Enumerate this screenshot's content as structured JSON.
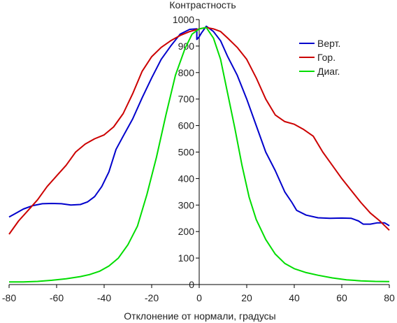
{
  "chart_data": {
    "type": "line",
    "title": "Контрастность",
    "xlabel": "Отклонение от нормали, градусы",
    "ylabel": "",
    "xlim": [
      -80,
      80
    ],
    "ylim": [
      0,
      1000
    ],
    "xticks": [
      -80,
      -60,
      -40,
      -20,
      0,
      20,
      40,
      60,
      80
    ],
    "yticks": [
      0,
      100,
      200,
      300,
      400,
      500,
      600,
      700,
      800,
      900,
      1000
    ],
    "grid": false,
    "legend_position": "top-right",
    "series": [
      {
        "name": "Верт.",
        "color": "#0000cc",
        "points": [
          [
            -80,
            255
          ],
          [
            -77,
            270
          ],
          [
            -74,
            285
          ],
          [
            -70,
            298
          ],
          [
            -66,
            305
          ],
          [
            -62,
            306
          ],
          [
            -58,
            305
          ],
          [
            -54,
            300
          ],
          [
            -50,
            302
          ],
          [
            -47,
            312
          ],
          [
            -44,
            332
          ],
          [
            -41,
            370
          ],
          [
            -38,
            425
          ],
          [
            -35,
            510
          ],
          [
            -32,
            560
          ],
          [
            -28,
            625
          ],
          [
            -24,
            705
          ],
          [
            -20,
            780
          ],
          [
            -16,
            850
          ],
          [
            -12,
            900
          ],
          [
            -8,
            945
          ],
          [
            -4,
            963
          ],
          [
            -1,
            965
          ],
          [
            -1,
            925
          ],
          [
            0,
            935
          ],
          [
            1,
            950
          ],
          [
            3,
            975
          ],
          [
            6,
            955
          ],
          [
            9,
            920
          ],
          [
            12,
            860
          ],
          [
            16,
            790
          ],
          [
            20,
            700
          ],
          [
            24,
            600
          ],
          [
            28,
            500
          ],
          [
            32,
            430
          ],
          [
            36,
            350
          ],
          [
            39,
            310
          ],
          [
            41,
            280
          ],
          [
            45,
            262
          ],
          [
            50,
            252
          ],
          [
            55,
            250
          ],
          [
            60,
            251
          ],
          [
            64,
            250
          ],
          [
            67,
            240
          ],
          [
            69,
            228
          ],
          [
            72,
            228
          ],
          [
            75,
            233
          ],
          [
            78,
            233
          ],
          [
            80,
            222
          ]
        ]
      },
      {
        "name": "Гор.",
        "color": "#cc0000",
        "points": [
          [
            -80,
            190
          ],
          [
            -76,
            240
          ],
          [
            -72,
            280
          ],
          [
            -68,
            320
          ],
          [
            -64,
            370
          ],
          [
            -60,
            410
          ],
          [
            -56,
            450
          ],
          [
            -52,
            500
          ],
          [
            -48,
            530
          ],
          [
            -44,
            550
          ],
          [
            -40,
            565
          ],
          [
            -36,
            595
          ],
          [
            -32,
            645
          ],
          [
            -28,
            720
          ],
          [
            -24,
            805
          ],
          [
            -20,
            860
          ],
          [
            -16,
            895
          ],
          [
            -12,
            920
          ],
          [
            -8,
            940
          ],
          [
            -4,
            955
          ],
          [
            0,
            965
          ],
          [
            3,
            970
          ],
          [
            6,
            965
          ],
          [
            9,
            955
          ],
          [
            12,
            930
          ],
          [
            16,
            895
          ],
          [
            20,
            850
          ],
          [
            24,
            780
          ],
          [
            28,
            700
          ],
          [
            32,
            640
          ],
          [
            36,
            615
          ],
          [
            40,
            605
          ],
          [
            44,
            585
          ],
          [
            48,
            560
          ],
          [
            52,
            500
          ],
          [
            56,
            450
          ],
          [
            60,
            400
          ],
          [
            64,
            355
          ],
          [
            68,
            310
          ],
          [
            72,
            270
          ],
          [
            76,
            240
          ],
          [
            80,
            205
          ]
        ]
      },
      {
        "name": "Диаг.",
        "color": "#00dd00",
        "points": [
          [
            -80,
            10
          ],
          [
            -74,
            10
          ],
          [
            -68,
            12
          ],
          [
            -62,
            16
          ],
          [
            -56,
            22
          ],
          [
            -50,
            30
          ],
          [
            -46,
            38
          ],
          [
            -42,
            50
          ],
          [
            -38,
            70
          ],
          [
            -34,
            100
          ],
          [
            -30,
            150
          ],
          [
            -26,
            220
          ],
          [
            -22,
            340
          ],
          [
            -18,
            480
          ],
          [
            -14,
            640
          ],
          [
            -10,
            790
          ],
          [
            -6,
            890
          ],
          [
            -3,
            945
          ],
          [
            0,
            965
          ],
          [
            3,
            970
          ],
          [
            6,
            930
          ],
          [
            9,
            850
          ],
          [
            12,
            720
          ],
          [
            15,
            590
          ],
          [
            18,
            450
          ],
          [
            21,
            330
          ],
          [
            24,
            245
          ],
          [
            28,
            170
          ],
          [
            32,
            115
          ],
          [
            36,
            80
          ],
          [
            40,
            60
          ],
          [
            45,
            45
          ],
          [
            50,
            35
          ],
          [
            56,
            25
          ],
          [
            62,
            18
          ],
          [
            68,
            14
          ],
          [
            74,
            12
          ],
          [
            80,
            11
          ]
        ]
      }
    ]
  }
}
